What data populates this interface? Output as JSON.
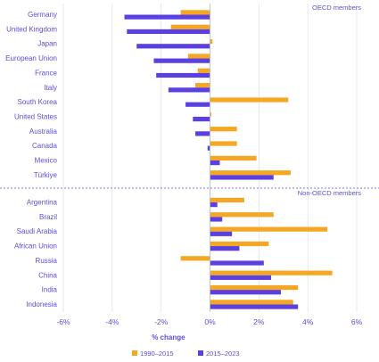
{
  "chart_data": {
    "type": "bar",
    "orientation": "horizontal",
    "xlabel": "% change",
    "xlim": [
      -6,
      6
    ],
    "x_ticks": [
      "-6%",
      "-4%",
      "-2%",
      "0%",
      "2%",
      "4%",
      "6%"
    ],
    "x_tick_values": [
      -6,
      -4,
      -2,
      0,
      2,
      4,
      6
    ],
    "grid": "vertical",
    "legend_position": "bottom-center",
    "colors": {
      "series_1990_2015": "#f5a623",
      "series_2015_2023": "#5b3fe0",
      "text": "#5b4fd6"
    },
    "groups": [
      {
        "title": "OECD members",
        "categories": [
          "Germany",
          "United Kingdom",
          "Japan",
          "European Union",
          "France",
          "Italy",
          "South Korea",
          "United States",
          "Australia",
          "Canada",
          "Mexico",
          "Türkiye"
        ],
        "series": [
          {
            "name": "1990–2015",
            "values": [
              -1.2,
              -1.6,
              0.1,
              -0.9,
              -0.5,
              -0.6,
              3.2,
              0.05,
              1.1,
              1.1,
              1.9,
              3.3
            ]
          },
          {
            "name": "2015–2023",
            "values": [
              -3.5,
              -3.4,
              -3.0,
              -2.3,
              -2.2,
              -1.7,
              -1.0,
              -0.7,
              -0.6,
              -0.1,
              0.4,
              2.6
            ]
          }
        ]
      },
      {
        "title": "Non-OECD members",
        "categories": [
          "Argentina",
          "Brazil",
          "Saudi Arabia",
          "African Union",
          "Russia",
          "China",
          "India",
          "Indonesia"
        ],
        "series": [
          {
            "name": "1990–2015",
            "values": [
              1.4,
              2.6,
              4.8,
              2.4,
              -1.2,
              5.0,
              3.6,
              3.4
            ]
          },
          {
            "name": "2015–2023",
            "values": [
              0.3,
              0.5,
              0.9,
              1.2,
              2.2,
              2.5,
              2.9,
              3.6
            ]
          }
        ]
      }
    ],
    "legend": [
      "1990–2015",
      "2015–2023"
    ]
  }
}
